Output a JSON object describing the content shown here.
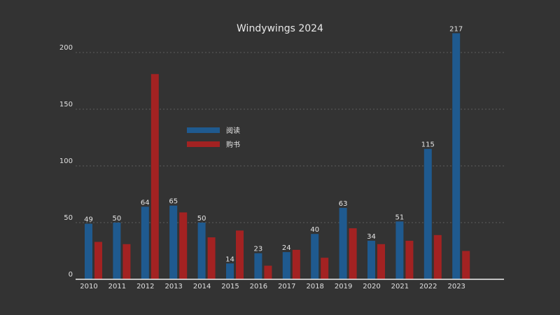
{
  "chart_data": {
    "type": "bar",
    "title": "Windywings 2024",
    "xlabel": "",
    "ylabel": "",
    "ylim": [
      0,
      230
    ],
    "yticks": [
      0,
      50,
      100,
      150,
      200
    ],
    "grid": true,
    "legend_position": "center-left",
    "categories": [
      "2010",
      "2011",
      "2012",
      "2013",
      "2014",
      "2015",
      "2016",
      "2017",
      "2018",
      "2019",
      "2020",
      "2021",
      "2022",
      "2023"
    ],
    "series": [
      {
        "name": "阅读",
        "color": "#1f5a8f",
        "values": [
          49,
          50,
          64,
          65,
          50,
          14,
          23,
          24,
          40,
          63,
          34,
          51,
          115,
          217
        ],
        "show_labels": true
      },
      {
        "name": "购书",
        "color": "#a32222",
        "values": [
          33,
          31,
          181,
          59,
          37,
          43,
          12,
          26,
          19,
          45,
          31,
          34,
          39,
          25
        ],
        "show_labels": false
      }
    ]
  }
}
